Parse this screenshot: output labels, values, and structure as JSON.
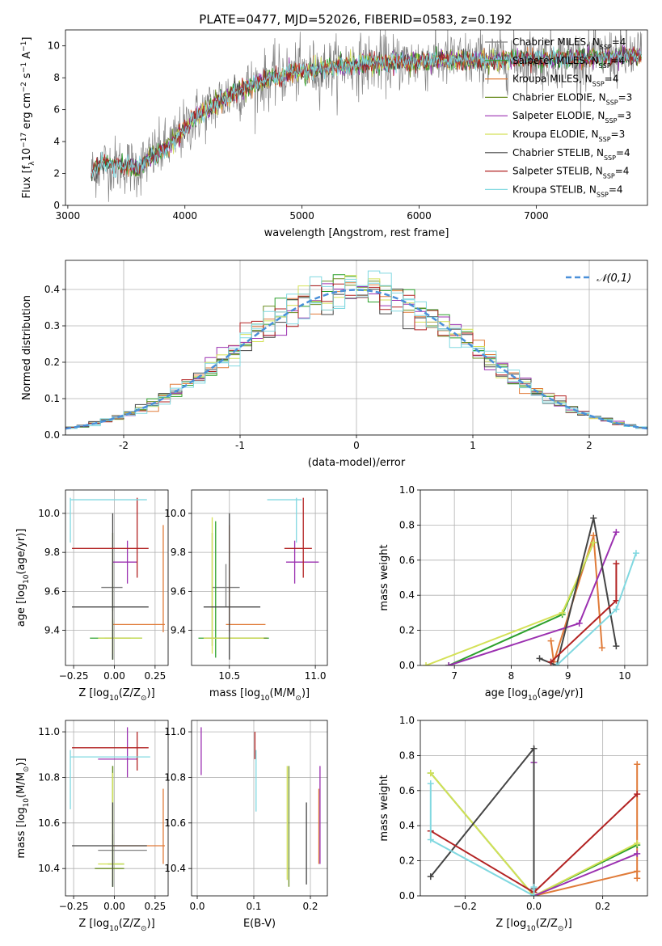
{
  "figure_title": "PLATE=0477, MJD=52026, FIBERID=0583, z=0.192",
  "colors": {
    "series": [
      "#808080",
      "#2ca02c",
      "#e07b39",
      "#6b8e23",
      "#9b30b0",
      "#d4e157",
      "#444444",
      "#b22222",
      "#80d8e0"
    ],
    "gaussian": "#4a90d9",
    "grid": "#b0b0b0"
  },
  "chart_data": [
    {
      "id": "spectrum",
      "type": "line",
      "xlabel": "wavelength [Angstrom, rest frame]",
      "ylabel_parts": [
        "Flux [f",
        "λ",
        "10",
        "−17",
        " erg cm",
        "−2",
        " s",
        "−1",
        " A",
        "−1",
        "]"
      ],
      "xlim": [
        2980,
        7950
      ],
      "ylim": [
        0,
        11
      ],
      "xticks": [
        3000,
        4000,
        5000,
        6000,
        7000
      ],
      "yticks": [
        0,
        2,
        4,
        6,
        8,
        10
      ],
      "continuum_x": [
        3200,
        3250,
        3300,
        3400,
        3500,
        3600,
        3700,
        3800,
        3900,
        4000,
        4100,
        4200,
        4300,
        4400,
        4500,
        4600,
        4700,
        4800,
        4900,
        5000,
        5200,
        5400,
        5600,
        5800,
        6000,
        6200,
        6400,
        6600,
        6800,
        7000,
        7200,
        7400,
        7600,
        7900
      ],
      "continuum_y": [
        2.0,
        2.4,
        2.6,
        2.55,
        2.5,
        2.3,
        3.0,
        3.4,
        4.0,
        4.8,
        5.6,
        6.0,
        6.6,
        7.0,
        7.3,
        7.6,
        7.9,
        8.1,
        8.3,
        8.4,
        8.6,
        8.8,
        8.9,
        9.0,
        9.0,
        9.1,
        9.1,
        9.1,
        9.2,
        9.2,
        9.2,
        9.2,
        9.3,
        9.4
      ],
      "legend": [
        {
          "lab": "Chabrier MILES, N",
          "sub": "SSP",
          "val": "=4"
        },
        {
          "lab": "Salpeter MILES, N",
          "sub": "SSP",
          "val": "=4"
        },
        {
          "lab": "Kroupa MILES, N",
          "sub": "SSP",
          "val": "=4"
        },
        {
          "lab": "Chabrier ELODIE, N",
          "sub": "SSP",
          "val": "=3"
        },
        {
          "lab": "Salpeter ELODIE, N",
          "sub": "SSP",
          "val": "=3"
        },
        {
          "lab": "Kroupa ELODIE, N",
          "sub": "SSP",
          "val": "=3"
        },
        {
          "lab": "Chabrier STELIB, N",
          "sub": "SSP",
          "val": "=4"
        },
        {
          "lab": "Salpeter STELIB, N",
          "sub": "SSP",
          "val": "=4"
        },
        {
          "lab": "Kroupa STELIB, N",
          "sub": "SSP",
          "val": "=4"
        }
      ]
    },
    {
      "id": "residuals",
      "type": "line",
      "xlabel": "(data-model)/error",
      "ylabel": "Normed distribution",
      "xlim": [
        -2.5,
        2.5
      ],
      "ylim": [
        0,
        0.48
      ],
      "xticks": [
        -2,
        -1,
        0,
        1,
        2
      ],
      "yticks": [
        0.0,
        0.1,
        0.2,
        0.3,
        0.4
      ],
      "ytick_labels": [
        "0.0",
        "0.1",
        "0.2",
        "0.3",
        "0.4"
      ],
      "legend_label": "𝒩(0,1)",
      "bin_width": 0.1,
      "bin_start": -2.5
    },
    {
      "id": "age_vs_Z",
      "type": "scatter",
      "xlabel_parts": [
        "Z [log",
        "10",
        "(Z/Z",
        "⊙",
        ")]"
      ],
      "ylabel_parts": [
        "age  [log",
        "10",
        "(age/yr)]"
      ],
      "xlim": [
        -0.3,
        0.33
      ],
      "ylim": [
        9.22,
        10.12
      ],
      "xticks": [
        -0.25,
        0.0,
        0.25
      ],
      "xtick_labels": [
        "−0.25",
        "0.00",
        "0.25"
      ],
      "yticks": [
        9.4,
        9.6,
        9.8,
        10.0
      ],
      "ytick_labels": [
        "9.4",
        "9.6",
        "9.8",
        "10.0"
      ],
      "points": [
        {
          "c": 0,
          "x": -0.01,
          "y": 9.62,
          "xe": [
            -0.08,
            0.05
          ],
          "ye": [
            9.5,
            9.75
          ]
        },
        {
          "c": 1,
          "x": -0.01,
          "y": 9.36,
          "xe": [
            -0.15,
            0.17
          ],
          "ye": [
            9.25,
            9.45
          ]
        },
        {
          "c": 2,
          "x": 0.3,
          "y": 9.43,
          "xe": [
            -0.01,
            0.31
          ],
          "ye": [
            9.39,
            9.94
          ]
        },
        {
          "c": 3,
          "x": -0.01,
          "y": 9.36,
          "xe": [
            -0.06,
            0.1
          ],
          "ye": [
            9.25,
            9.9
          ]
        },
        {
          "c": 4,
          "x": 0.08,
          "y": 9.75,
          "xe": [
            -0.01,
            0.14
          ],
          "ye": [
            9.64,
            9.86
          ]
        },
        {
          "c": 5,
          "x": -0.01,
          "y": 9.36,
          "xe": [
            -0.1,
            0.17
          ],
          "ye": [
            9.28,
            9.46
          ]
        },
        {
          "c": 6,
          "x": -0.01,
          "y": 9.52,
          "xe": [
            -0.26,
            0.21
          ],
          "ye": [
            9.25,
            10.0
          ]
        },
        {
          "c": 7,
          "x": 0.14,
          "y": 9.82,
          "xe": [
            -0.26,
            0.21
          ],
          "ye": [
            9.67,
            10.08
          ]
        },
        {
          "c": 8,
          "x": -0.27,
          "y": 10.07,
          "xe": [
            -0.27,
            0.2
          ],
          "ye": [
            9.85,
            10.08
          ]
        }
      ]
    },
    {
      "id": "age_vs_mass",
      "type": "scatter",
      "xlabel_parts": [
        "mass [log",
        "10",
        "(M/M",
        "⊙",
        ")]"
      ],
      "xlim": [
        10.28,
        11.07
      ],
      "ylim": [
        9.22,
        10.12
      ],
      "xticks": [
        10.5,
        11.0
      ],
      "xtick_labels": [
        "10.5",
        "11.0"
      ],
      "yticks": [
        9.4,
        9.6,
        9.8,
        10.0
      ],
      "ytick_labels": [
        "9.4",
        "9.6",
        "9.8",
        "10.0"
      ],
      "points": [
        {
          "c": 0,
          "x": 10.48,
          "y": 9.62,
          "xe": [
            10.4,
            10.56
          ],
          "ye": [
            9.52,
            9.74
          ]
        },
        {
          "c": 1,
          "x": 10.42,
          "y": 9.36,
          "xe": [
            10.32,
            10.73
          ],
          "ye": [
            9.26,
            9.96
          ]
        },
        {
          "c": 2,
          "x": 10.5,
          "y": 9.43,
          "xe": [
            10.48,
            10.71
          ],
          "ye": [
            9.39,
            9.94
          ]
        },
        {
          "c": 3,
          "x": 10.4,
          "y": 9.36,
          "xe": [
            10.35,
            10.72
          ],
          "ye": [
            9.32,
            9.9
          ]
        },
        {
          "c": 4,
          "x": 10.88,
          "y": 9.75,
          "xe": [
            10.83,
            11.02
          ],
          "ye": [
            9.64,
            9.86
          ]
        },
        {
          "c": 5,
          "x": 10.4,
          "y": 9.36,
          "xe": [
            10.35,
            10.7
          ],
          "ye": [
            9.28,
            9.98
          ]
        },
        {
          "c": 6,
          "x": 10.5,
          "y": 9.52,
          "xe": [
            10.35,
            10.68
          ],
          "ye": [
            9.25,
            10.0
          ]
        },
        {
          "c": 7,
          "x": 10.93,
          "y": 9.82,
          "xe": [
            10.82,
            10.98
          ],
          "ye": [
            9.67,
            10.08
          ]
        },
        {
          "c": 8,
          "x": 10.89,
          "y": 10.07,
          "xe": [
            10.72,
            10.92
          ],
          "ye": [
            9.85,
            10.08
          ]
        }
      ]
    },
    {
      "id": "mass_weight_vs_age",
      "type": "line",
      "xlabel_parts": [
        "age  [log",
        "10",
        "(age/yr)]"
      ],
      "ylabel": "mass weight",
      "xlim": [
        6.4,
        10.4
      ],
      "ylim": [
        0,
        1.0
      ],
      "xticks": [
        7,
        8,
        9,
        10
      ],
      "yticks": [
        0.0,
        0.2,
        0.4,
        0.6,
        0.8,
        1.0
      ],
      "ytick_labels": [
        "0.0",
        "0.2",
        "0.4",
        "0.6",
        "0.8",
        "1.0"
      ],
      "series": [
        {
          "c": 2,
          "x": [
            8.7,
            8.75,
            9.45,
            9.6
          ],
          "y": [
            0.14,
            0.02,
            0.74,
            0.1
          ]
        },
        {
          "c": 1,
          "x": [
            6.9,
            8.9,
            9.45
          ],
          "y": [
            0.0,
            0.29,
            0.7
          ]
        },
        {
          "c": 5,
          "x": [
            6.5,
            8.9,
            9.45
          ],
          "y": [
            0.0,
            0.3,
            0.7
          ]
        },
        {
          "c": 4,
          "x": [
            6.9,
            9.2,
            9.85
          ],
          "y": [
            0.0,
            0.24,
            0.76
          ]
        },
        {
          "c": 6,
          "x": [
            8.5,
            8.8,
            9.45,
            9.85
          ],
          "y": [
            0.04,
            0.0,
            0.84,
            0.11
          ]
        },
        {
          "c": 7,
          "x": [
            8.7,
            9.85,
            9.85
          ],
          "y": [
            0.02,
            0.37,
            0.58
          ]
        },
        {
          "c": 8,
          "x": [
            8.8,
            9.85,
            10.2
          ],
          "y": [
            0.0,
            0.32,
            0.64
          ]
        }
      ]
    },
    {
      "id": "mass_vs_Z",
      "type": "scatter",
      "xlabel_parts": [
        "Z [log",
        "10",
        "(Z/Z",
        "⊙",
        ")]"
      ],
      "ylabel_parts": [
        "mass [log",
        "10",
        "(M/M",
        "⊙",
        ")]"
      ],
      "xlim": [
        -0.3,
        0.33
      ],
      "ylim": [
        10.28,
        11.05
      ],
      "xticks": [
        -0.25,
        0.0,
        0.25
      ],
      "xtick_labels": [
        "−0.25",
        "0.00",
        "0.25"
      ],
      "yticks": [
        10.4,
        10.6,
        10.8,
        11.0
      ],
      "ytick_labels": [
        "10.4",
        "10.6",
        "10.8",
        "11.0"
      ],
      "points": [
        {
          "c": 0,
          "x": -0.01,
          "y": 10.48,
          "xe": [
            -0.1,
            0.2
          ],
          "ye": [
            10.42,
            10.55
          ]
        },
        {
          "c": 1,
          "x": -0.01,
          "y": 10.42,
          "xe": [
            -0.04,
            0.06
          ],
          "ye": [
            10.32,
            10.85
          ]
        },
        {
          "c": 2,
          "x": 0.3,
          "y": 10.5,
          "xe": [
            -0.01,
            0.31
          ],
          "ye": [
            10.42,
            10.75
          ]
        },
        {
          "c": 3,
          "x": -0.01,
          "y": 10.4,
          "xe": [
            -0.12,
            0.06
          ],
          "ye": [
            10.32,
            10.85
          ]
        },
        {
          "c": 4,
          "x": 0.08,
          "y": 10.88,
          "xe": [
            -0.1,
            0.14
          ],
          "ye": [
            10.8,
            11.02
          ]
        },
        {
          "c": 5,
          "x": -0.01,
          "y": 10.42,
          "xe": [
            -0.1,
            0.06
          ],
          "ye": [
            10.35,
            10.82
          ]
        },
        {
          "c": 6,
          "x": -0.01,
          "y": 10.5,
          "xe": [
            -0.26,
            0.2
          ],
          "ye": [
            10.32,
            10.69
          ]
        },
        {
          "c": 7,
          "x": 0.14,
          "y": 10.93,
          "xe": [
            -0.26,
            0.21
          ],
          "ye": [
            10.83,
            11.0
          ]
        },
        {
          "c": 8,
          "x": -0.27,
          "y": 10.89,
          "xe": [
            -0.27,
            0.22
          ],
          "ye": [
            10.66,
            10.92
          ]
        }
      ]
    },
    {
      "id": "mass_vs_ebv",
      "type": "scatter",
      "xlabel": "E(B-V)",
      "xlim": [
        -0.01,
        0.23
      ],
      "ylim": [
        10.28,
        11.05
      ],
      "xticks": [
        0.0,
        0.1,
        0.2
      ],
      "xtick_labels": [
        "0.0",
        "0.1",
        "0.2"
      ],
      "yticks": [
        10.4,
        10.6,
        10.8,
        11.0
      ],
      "ytick_labels": [
        "10.4",
        "10.6",
        "10.8",
        "11.0"
      ],
      "points": [
        {
          "c": 4,
          "x": 0.007,
          "y": 10.93,
          "xe": [
            0.007,
            0.007
          ],
          "ye": [
            10.81,
            11.02
          ]
        },
        {
          "c": 7,
          "x": 0.102,
          "y": 10.95,
          "xe": [
            0.102,
            0.102
          ],
          "ye": [
            10.88,
            11.0
          ]
        },
        {
          "c": 8,
          "x": 0.104,
          "y": 10.85,
          "xe": [
            0.104,
            0.104
          ],
          "ye": [
            10.65,
            10.92
          ]
        },
        {
          "c": 5,
          "x": 0.159,
          "y": 10.5,
          "xe": [
            0.159,
            0.159
          ],
          "ye": [
            10.35,
            10.85
          ]
        },
        {
          "c": 3,
          "x": 0.162,
          "y": 10.5,
          "xe": [
            0.162,
            0.162
          ],
          "ye": [
            10.32,
            10.85
          ]
        },
        {
          "c": 6,
          "x": 0.193,
          "y": 10.5,
          "xe": [
            0.193,
            0.193
          ],
          "ye": [
            10.33,
            10.69
          ]
        },
        {
          "c": 2,
          "x": 0.215,
          "y": 10.6,
          "xe": [
            0.215,
            0.215
          ],
          "ye": [
            10.42,
            10.75
          ]
        },
        {
          "c": 4,
          "x": 0.217,
          "y": 10.6,
          "xe": [
            0.217,
            0.217
          ],
          "ye": [
            10.42,
            10.85
          ]
        }
      ]
    },
    {
      "id": "mass_weight_vs_Z",
      "type": "line",
      "xlabel_parts": [
        "Z [log",
        "10",
        "(Z/Z",
        "⊙",
        ")]"
      ],
      "ylabel": "mass weight",
      "xlim": [
        -0.33,
        0.33
      ],
      "ylim": [
        0,
        1.0
      ],
      "xticks": [
        -0.2,
        0.0,
        0.2
      ],
      "xtick_labels": [
        "−0.2",
        "0.0",
        "0.2"
      ],
      "yticks": [
        0.0,
        0.2,
        0.4,
        0.6,
        0.8,
        1.0
      ],
      "ytick_labels": [
        "0.0",
        "0.2",
        "0.4",
        "0.6",
        "0.8",
        "1.0"
      ],
      "series": [
        {
          "c": 2,
          "x": [
            0.3,
            0.3,
            0.0,
            0.3,
            0.3
          ],
          "y": [
            0.75,
            0.14,
            0.0,
            0.14,
            0.1
          ]
        },
        {
          "c": 1,
          "x": [
            -0.3,
            0.0,
            0.3
          ],
          "y": [
            0.7,
            0.0,
            0.29
          ]
        },
        {
          "c": 5,
          "x": [
            -0.3,
            0.0,
            0.3
          ],
          "y": [
            0.7,
            0.0,
            0.3
          ]
        },
        {
          "c": 4,
          "x": [
            0.0,
            0.0,
            0.3
          ],
          "y": [
            0.76,
            0.0,
            0.24
          ]
        },
        {
          "c": 6,
          "x": [
            -0.3,
            0.0,
            0.0
          ],
          "y": [
            0.11,
            0.84,
            0.04
          ]
        },
        {
          "c": 7,
          "x": [
            -0.3,
            0.0,
            0.3
          ],
          "y": [
            0.37,
            0.02,
            0.58
          ]
        },
        {
          "c": 8,
          "x": [
            -0.3,
            -0.3,
            0.0,
            0.0
          ],
          "y": [
            0.64,
            0.32,
            0.0,
            0.05
          ]
        }
      ]
    }
  ]
}
